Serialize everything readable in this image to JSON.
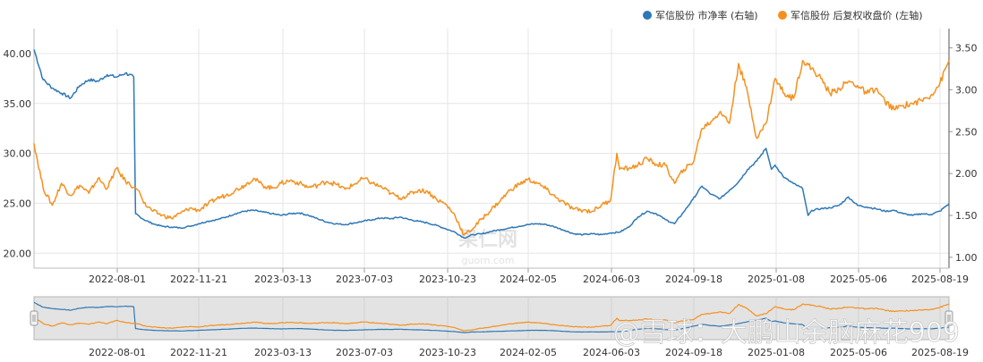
{
  "chart_data": {
    "type": "line",
    "x_ticks": [
      "2022-08-01",
      "2022-11-21",
      "2023-03-13",
      "2023-07-03",
      "2023-10-23",
      "2024-02-05",
      "2024-06-03",
      "2024-09-18",
      "2025-01-08",
      "2025-05-06",
      "2025-08-19"
    ],
    "left_axis": {
      "ylim": [
        18.5,
        42.5
      ],
      "ticks": [
        "20.00",
        "25.00",
        "30.00",
        "35.00",
        "40.00"
      ]
    },
    "right_axis": {
      "ylim": [
        0.87,
        3.73
      ],
      "ticks": [
        "1.00",
        "1.50",
        "2.00",
        "2.50",
        "3.00",
        "3.50"
      ]
    },
    "legend": {
      "position": "top-right"
    },
    "watermark": {
      "cn": "果仁网",
      "en": "guorn.com"
    },
    "overlay_text": "@雪球：大鹏山余脑麻花909",
    "series": [
      {
        "name": "军信股份 市净率 (右轴)",
        "axis": "right",
        "color": "#2e78b6",
        "points": [
          [
            0,
            3.48
          ],
          [
            1,
            3.12
          ],
          [
            2,
            3.02
          ],
          [
            3,
            2.96
          ],
          [
            4,
            2.9
          ],
          [
            5,
            3.05
          ],
          [
            6,
            3.12
          ],
          [
            7,
            3.1
          ],
          [
            8,
            3.18
          ],
          [
            9,
            3.15
          ],
          [
            10,
            3.2
          ],
          [
            10.9,
            3.15
          ],
          [
            11.1,
            1.52
          ],
          [
            12,
            1.45
          ],
          [
            13,
            1.4
          ],
          [
            14,
            1.37
          ],
          [
            15,
            1.36
          ],
          [
            16,
            1.35
          ],
          [
            17,
            1.37
          ],
          [
            18,
            1.4
          ],
          [
            19,
            1.43
          ],
          [
            20,
            1.45
          ],
          [
            21,
            1.48
          ],
          [
            22,
            1.52
          ],
          [
            23,
            1.55
          ],
          [
            24,
            1.56
          ],
          [
            25,
            1.54
          ],
          [
            26,
            1.52
          ],
          [
            27,
            1.5
          ],
          [
            28,
            1.52
          ],
          [
            29,
            1.53
          ],
          [
            30,
            1.5
          ],
          [
            31,
            1.46
          ],
          [
            32,
            1.42
          ],
          [
            33,
            1.4
          ],
          [
            34,
            1.39
          ],
          [
            35,
            1.41
          ],
          [
            36,
            1.43
          ],
          [
            37,
            1.45
          ],
          [
            38,
            1.47
          ],
          [
            39,
            1.46
          ],
          [
            40,
            1.48
          ],
          [
            41,
            1.45
          ],
          [
            42,
            1.43
          ],
          [
            43,
            1.41
          ],
          [
            44,
            1.38
          ],
          [
            45,
            1.34
          ],
          [
            46,
            1.3
          ],
          [
            47,
            1.23
          ],
          [
            48,
            1.27
          ],
          [
            49,
            1.28
          ],
          [
            50,
            1.31
          ],
          [
            51,
            1.33
          ],
          [
            52,
            1.35
          ],
          [
            53,
            1.37
          ],
          [
            54,
            1.39
          ],
          [
            55,
            1.4
          ],
          [
            56,
            1.39
          ],
          [
            57,
            1.36
          ],
          [
            58,
            1.32
          ],
          [
            59,
            1.28
          ],
          [
            60,
            1.27
          ],
          [
            61,
            1.28
          ],
          [
            62,
            1.27
          ],
          [
            63,
            1.29
          ],
          [
            64,
            1.3
          ],
          [
            65,
            1.36
          ],
          [
            66,
            1.48
          ],
          [
            67,
            1.55
          ],
          [
            68,
            1.52
          ],
          [
            69,
            1.45
          ],
          [
            70,
            1.4
          ],
          [
            71,
            1.54
          ],
          [
            72,
            1.69
          ],
          [
            73,
            1.85
          ],
          [
            74,
            1.75
          ],
          [
            75,
            1.7
          ],
          [
            76,
            1.8
          ],
          [
            77,
            1.9
          ],
          [
            78,
            2.05
          ],
          [
            79,
            2.15
          ],
          [
            80,
            2.3
          ],
          [
            80.6,
            2.05
          ],
          [
            81,
            2.1
          ],
          [
            82,
            1.95
          ],
          [
            83,
            1.88
          ],
          [
            84,
            1.82
          ],
          [
            84.6,
            1.5
          ],
          [
            85,
            1.56
          ],
          [
            86,
            1.58
          ],
          [
            87,
            1.59
          ],
          [
            88,
            1.62
          ],
          [
            89,
            1.72
          ],
          [
            90,
            1.62
          ],
          [
            91,
            1.6
          ],
          [
            92,
            1.58
          ],
          [
            93,
            1.55
          ],
          [
            94,
            1.56
          ],
          [
            95,
            1.52
          ],
          [
            96,
            1.5
          ],
          [
            97,
            1.52
          ],
          [
            98,
            1.51
          ],
          [
            99,
            1.55
          ],
          [
            100,
            1.64
          ]
        ]
      },
      {
        "name": "军信股份 后复权收盘价 (左轴)",
        "axis": "left",
        "color": "#f5901e",
        "points": [
          [
            0,
            31.0
          ],
          [
            1,
            26.5
          ],
          [
            2,
            24.8
          ],
          [
            3,
            27.0
          ],
          [
            4,
            25.8
          ],
          [
            5,
            26.8
          ],
          [
            6,
            26.0
          ],
          [
            7,
            27.5
          ],
          [
            8,
            26.5
          ],
          [
            9,
            28.5
          ],
          [
            10,
            27.2
          ],
          [
            11,
            26.6
          ],
          [
            11.5,
            26.2
          ],
          [
            12,
            25.0
          ],
          [
            13,
            24.2
          ],
          [
            14,
            23.8
          ],
          [
            15,
            23.5
          ],
          [
            16,
            24.0
          ],
          [
            17,
            24.5
          ],
          [
            18,
            24.3
          ],
          [
            19,
            24.9
          ],
          [
            20,
            25.5
          ],
          [
            21,
            25.8
          ],
          [
            22,
            26.3
          ],
          [
            23,
            26.8
          ],
          [
            24,
            27.5
          ],
          [
            25,
            26.8
          ],
          [
            26,
            26.5
          ],
          [
            27,
            27.0
          ],
          [
            28,
            27.3
          ],
          [
            29,
            27.0
          ],
          [
            30,
            26.6
          ],
          [
            31,
            26.8
          ],
          [
            32,
            27.2
          ],
          [
            33,
            26.9
          ],
          [
            34,
            26.4
          ],
          [
            35,
            26.9
          ],
          [
            36,
            27.5
          ],
          [
            37,
            27.0
          ],
          [
            38,
            26.6
          ],
          [
            39,
            26.0
          ],
          [
            40,
            25.5
          ],
          [
            41,
            25.9
          ],
          [
            42,
            26.3
          ],
          [
            43,
            26.2
          ],
          [
            44,
            25.4
          ],
          [
            45,
            24.9
          ],
          [
            46,
            23.8
          ],
          [
            47,
            21.8
          ],
          [
            48,
            22.5
          ],
          [
            49,
            23.5
          ],
          [
            50,
            24.4
          ],
          [
            51,
            25.3
          ],
          [
            52,
            26.3
          ],
          [
            53,
            26.9
          ],
          [
            54,
            27.4
          ],
          [
            55,
            27.0
          ],
          [
            56,
            26.4
          ],
          [
            57,
            25.6
          ],
          [
            58,
            25.0
          ],
          [
            59,
            24.4
          ],
          [
            60,
            24.3
          ],
          [
            61,
            24.2
          ],
          [
            62,
            24.8
          ],
          [
            63,
            25.3
          ],
          [
            63.7,
            30.0
          ],
          [
            64,
            28.4
          ],
          [
            65,
            28.5
          ],
          [
            66,
            28.8
          ],
          [
            67,
            29.5
          ],
          [
            68,
            28.9
          ],
          [
            69,
            28.8
          ],
          [
            70,
            27.0
          ],
          [
            71,
            28.4
          ],
          [
            72,
            29.0
          ],
          [
            73,
            32.5
          ],
          [
            74,
            33.2
          ],
          [
            75,
            34.2
          ],
          [
            76,
            33.0
          ],
          [
            77,
            39.0
          ],
          [
            78,
            36.0
          ],
          [
            79,
            31.5
          ],
          [
            80,
            33.0
          ],
          [
            81,
            37.5
          ],
          [
            82,
            36.0
          ],
          [
            83,
            35.5
          ],
          [
            84,
            39.3
          ],
          [
            85,
            38.5
          ],
          [
            86,
            37.5
          ],
          [
            87,
            36.0
          ],
          [
            88,
            36.5
          ],
          [
            89,
            37.2
          ],
          [
            90,
            36.8
          ],
          [
            91,
            36.0
          ],
          [
            92,
            36.5
          ],
          [
            93,
            35.2
          ],
          [
            94,
            34.4
          ],
          [
            95,
            34.8
          ],
          [
            96,
            35.0
          ],
          [
            97,
            35.3
          ],
          [
            98,
            35.8
          ],
          [
            99,
            37.0
          ],
          [
            100,
            39.3
          ]
        ]
      }
    ]
  }
}
